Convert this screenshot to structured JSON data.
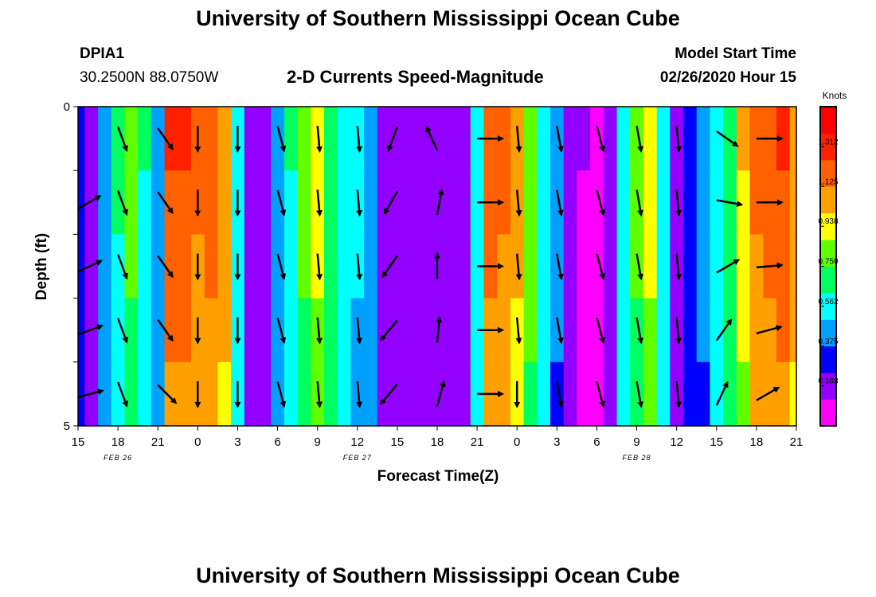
{
  "page": {
    "title_top": "University of Southern Mississippi Ocean Cube",
    "title_bottom": "University of Southern Mississippi Ocean Cube",
    "station_id": "DPIA1",
    "station_coords": "30.2500N 88.0750W",
    "subtitle": "2-D Currents Speed-Magnitude",
    "model_start_label": "Model Start Time",
    "model_start_value": "02/26/2020 Hour 15"
  },
  "chart_data": {
    "type": "heatmap",
    "title": "2-D Currents Speed-Magnitude",
    "xlabel": "Forecast Time(Z)",
    "ylabel": "Depth (ft)",
    "x_ticks": [
      "15",
      "18",
      "21",
      "0",
      "3",
      "6",
      "9",
      "12",
      "15",
      "18",
      "21",
      "0",
      "3",
      "6",
      "9",
      "12",
      "15",
      "18",
      "21"
    ],
    "day_labels": [
      {
        "label": "FEB  26",
        "tick_index": 1
      },
      {
        "label": "FEB  27",
        "tick_index": 7
      },
      {
        "label": "FEB  28",
        "tick_index": 14
      }
    ],
    "y_ticks": [
      "0",
      "",
      "",
      "",
      "",
      "5"
    ],
    "ylim": [
      0,
      5
    ],
    "colorbar": {
      "unit": "Knots",
      "levels": [
        "1.312",
        "1.125",
        "0.938",
        "0.750",
        "0.562",
        "0.375",
        "0.188"
      ],
      "max": 1.5,
      "colors": [
        "#ff00ff",
        "#9400ff",
        "#0000ff",
        "#00a0ff",
        "#00ffff",
        "#00ff60",
        "#60ff00",
        "#ffff00",
        "#ffa000",
        "#ff6000",
        "#ff2000",
        "#ff0000"
      ]
    },
    "speed_profile_by_hour": [
      {
        "hour": 0,
        "speed": 0.28
      },
      {
        "hour": 1,
        "speed": 0.22
      },
      {
        "hour": 2,
        "speed": 0.45
      },
      {
        "hour": 3,
        "speed": 0.62
      },
      {
        "hour": 4,
        "speed": 0.78
      },
      {
        "hour": 5,
        "speed": 0.6
      },
      {
        "hour": 6,
        "speed": 0.45
      },
      {
        "hour": 7,
        "speed": 1.2
      },
      {
        "hour": 8,
        "speed": 1.18
      },
      {
        "hour": 9,
        "speed": 1.12
      },
      {
        "hour": 10,
        "speed": 1.14
      },
      {
        "hour": 11,
        "speed": 1.05
      },
      {
        "hour": 12,
        "speed": 0.55
      },
      {
        "hour": 13,
        "speed": 0.22
      },
      {
        "hour": 14,
        "speed": 0.15
      },
      {
        "hour": 15,
        "speed": 0.45
      },
      {
        "hour": 16,
        "speed": 0.6
      },
      {
        "hour": 17,
        "speed": 0.75
      },
      {
        "hour": 18,
        "speed": 0.88
      },
      {
        "hour": 19,
        "speed": 0.7
      },
      {
        "hour": 20,
        "speed": 0.55
      },
      {
        "hour": 21,
        "speed": 0.5
      },
      {
        "hour": 22,
        "speed": 0.42
      },
      {
        "hour": 23,
        "speed": 0.2
      },
      {
        "hour": 24,
        "speed": 0.16
      },
      {
        "hour": 25,
        "speed": 0.18
      },
      {
        "hour": 26,
        "speed": 0.22
      },
      {
        "hour": 27,
        "speed": 0.15
      },
      {
        "hour": 28,
        "speed": 0.14
      },
      {
        "hour": 29,
        "speed": 0.18
      },
      {
        "hour": 30,
        "speed": 0.55
      },
      {
        "hour": 31,
        "speed": 1.15
      },
      {
        "hour": 32,
        "speed": 1.1
      },
      {
        "hour": 33,
        "speed": 1.0
      },
      {
        "hour": 34,
        "speed": 0.8
      },
      {
        "hour": 35,
        "speed": 0.55
      },
      {
        "hour": 36,
        "speed": 0.4
      },
      {
        "hour": 37,
        "speed": 0.2
      },
      {
        "hour": 38,
        "speed": 0.12
      },
      {
        "hour": 39,
        "speed": 0.08
      },
      {
        "hour": 40,
        "speed": 0.2
      },
      {
        "hour": 41,
        "speed": 0.55
      },
      {
        "hour": 42,
        "speed": 0.75
      },
      {
        "hour": 43,
        "speed": 0.9
      },
      {
        "hour": 44,
        "speed": 0.55
      },
      {
        "hour": 45,
        "speed": 0.2
      },
      {
        "hour": 46,
        "speed": 0.3
      },
      {
        "hour": 47,
        "speed": 0.4
      },
      {
        "hour": 48,
        "speed": 0.55
      },
      {
        "hour": 49,
        "speed": 0.7
      },
      {
        "hour": 50,
        "speed": 0.95
      },
      {
        "hour": 51,
        "speed": 1.1
      },
      {
        "hour": 52,
        "speed": 1.15
      },
      {
        "hour": 53,
        "speed": 1.18
      },
      {
        "hour": 54,
        "speed": 1.05
      }
    ],
    "depth_speed_factor": [
      1.06,
      1.03,
      1.0,
      0.96,
      0.92
    ],
    "vectors": [
      {
        "hour": 0,
        "depths": [
          null,
          60,
          65,
          70,
          75
        ]
      },
      {
        "hour": 3,
        "depths": [
          160,
          160,
          160,
          160,
          160
        ]
      },
      {
        "hour": 6,
        "depths": [
          145,
          145,
          145,
          145,
          135
        ]
      },
      {
        "hour": 9,
        "depths": [
          180,
          180,
          180,
          180,
          180
        ]
      },
      {
        "hour": 12,
        "depths": [
          180,
          180,
          180,
          180,
          180
        ]
      },
      {
        "hour": 15,
        "depths": [
          165,
          165,
          165,
          165,
          165
        ]
      },
      {
        "hour": 18,
        "depths": [
          175,
          175,
          175,
          175,
          175
        ]
      },
      {
        "hour": 21,
        "depths": [
          175,
          175,
          175,
          175,
          175
        ]
      },
      {
        "hour": 24,
        "depths": [
          200,
          210,
          215,
          220,
          220
        ]
      },
      {
        "hour": 27,
        "depths": [
          335,
          10,
          0,
          5,
          15
        ]
      },
      {
        "hour": 30,
        "depths": [
          90,
          90,
          90,
          90,
          90
        ]
      },
      {
        "hour": 33,
        "depths": [
          175,
          175,
          175,
          175,
          180
        ]
      },
      {
        "hour": 36,
        "depths": [
          170,
          170,
          170,
          170,
          170
        ]
      },
      {
        "hour": 39,
        "depths": [
          165,
          165,
          165,
          165,
          165
        ]
      },
      {
        "hour": 42,
        "depths": [
          170,
          170,
          170,
          170,
          170
        ]
      },
      {
        "hour": 45,
        "depths": [
          175,
          175,
          175,
          175,
          175
        ]
      },
      {
        "hour": 48,
        "depths": [
          125,
          100,
          60,
          35,
          25
        ]
      },
      {
        "hour": 51,
        "depths": [
          90,
          90,
          85,
          75,
          60
        ]
      }
    ]
  }
}
